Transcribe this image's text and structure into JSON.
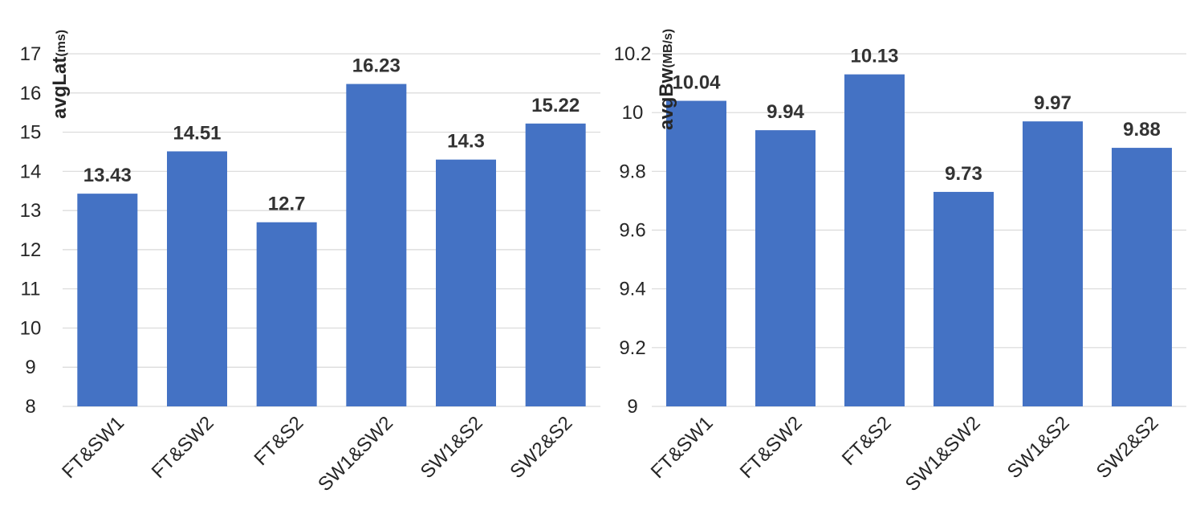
{
  "chart_data": [
    {
      "type": "bar",
      "categories": [
        "FT&SW1",
        "FT&SW2",
        "FT&S2",
        "SW1&SW2",
        "SW1&S2",
        "SW2&S2"
      ],
      "values": [
        13.43,
        14.51,
        12.7,
        16.23,
        14.3,
        15.22
      ],
      "data_labels": [
        "13.43",
        "14.51",
        "12.7",
        "16.23",
        "14.3",
        "15.22"
      ],
      "yticks": [
        "8",
        "9",
        "10",
        "11",
        "12",
        "13",
        "14",
        "15",
        "16",
        "17"
      ],
      "ylim": [
        8,
        17
      ],
      "ylabel": "avgLat",
      "ylabel_unit": "(ms)",
      "grid": true,
      "color": "#4472c4"
    },
    {
      "type": "bar",
      "categories": [
        "FT&SW1",
        "FT&SW2",
        "FT&S2",
        "SW1&SW2",
        "SW1&S2",
        "SW2&S2"
      ],
      "values": [
        10.04,
        9.94,
        10.13,
        9.73,
        9.97,
        9.88
      ],
      "data_labels": [
        "10.04",
        "9.94",
        "10.13",
        "9.73",
        "9.97",
        "9.88"
      ],
      "yticks": [
        "9",
        "9.2",
        "9.4",
        "9.6",
        "9.8",
        "10",
        "10.2"
      ],
      "ylim": [
        9,
        10.2
      ],
      "ylabel": "avgBw",
      "ylabel_unit": "(MB/s)",
      "grid": true,
      "color": "#4472c4"
    }
  ]
}
